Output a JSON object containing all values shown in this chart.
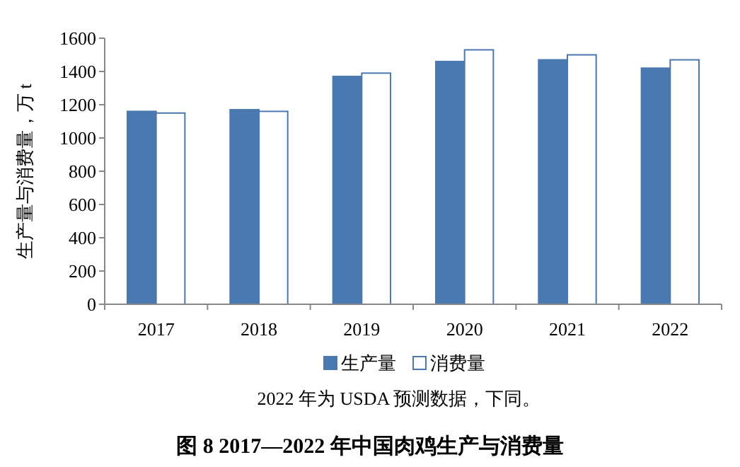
{
  "chart_data": {
    "type": "bar",
    "title": "图 8  2017—2022 年中国肉鸡生产与消费量",
    "ylabel": "生产量与消费量，万 t",
    "annotations": [
      "2022 年为 USDA 预测数据，下同。"
    ],
    "categories": [
      "2017",
      "2018",
      "2019",
      "2020",
      "2021",
      "2022"
    ],
    "series": [
      {
        "name": "生产量",
        "color": "#4a78b0",
        "values": [
          1160,
          1170,
          1370,
          1460,
          1470,
          1420
        ]
      },
      {
        "name": "消费量",
        "color": "#ffffff",
        "values": [
          1150,
          1160,
          1390,
          1530,
          1500,
          1470
        ]
      }
    ],
    "ylim": [
      0,
      1600
    ],
    "yticks": [
      0,
      200,
      400,
      600,
      800,
      1000,
      1200,
      1400,
      1600
    ],
    "grid": false,
    "legend": "bottom"
  }
}
